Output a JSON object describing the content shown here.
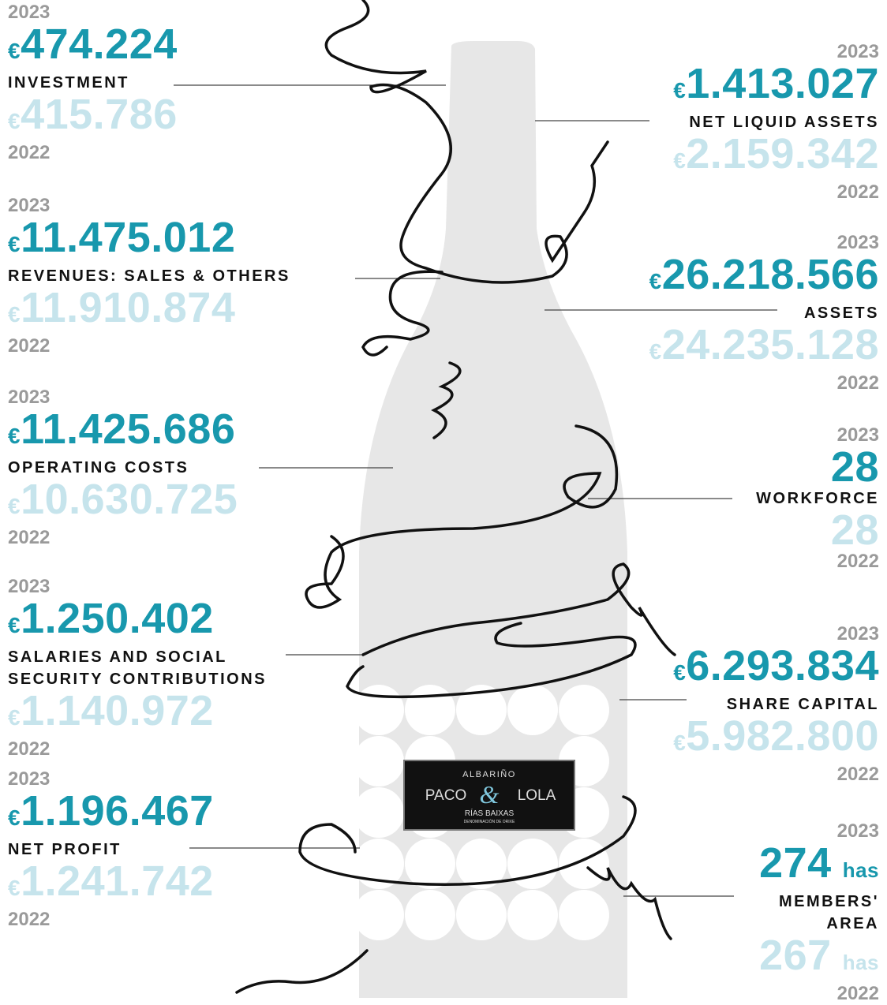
{
  "left": [
    {
      "year_current": "2023",
      "currency": "€",
      "value_current": "474.224",
      "label_lines": [
        "INVESTMENT"
      ],
      "value_prev": "415.786",
      "year_prev": "2022"
    },
    {
      "year_current": "2023",
      "currency": "€",
      "value_current": "11.475.012",
      "label_lines": [
        "REVENUES: SALES & OTHERS"
      ],
      "value_prev": "11.910.874",
      "year_prev": "2022"
    },
    {
      "year_current": "2023",
      "currency": "€",
      "value_current": "11.425.686",
      "label_lines": [
        "OPERATING COSTS"
      ],
      "value_prev": "10.630.725",
      "year_prev": "2022"
    },
    {
      "year_current": "2023",
      "currency": "€",
      "value_current": "1.250.402",
      "label_lines": [
        "SALARIES AND SOCIAL",
        "SECURITY CONTRIBUTIONS"
      ],
      "value_prev": "1.140.972",
      "year_prev": "2022"
    },
    {
      "year_current": "2023",
      "currency": "€",
      "value_current": "1.196.467",
      "label_lines": [
        "NET PROFIT"
      ],
      "value_prev": "1.241.742",
      "year_prev": "2022"
    }
  ],
  "right": [
    {
      "year_current": "2023",
      "currency": "€",
      "value_current": "1.413.027",
      "label_lines": [
        "NET LIQUID ASSETS"
      ],
      "value_prev": "2.159.342",
      "year_prev": "2022"
    },
    {
      "year_current": "2023",
      "currency": "€",
      "value_current": "26.218.566",
      "label_lines": [
        "ASSETS"
      ],
      "value_prev": "24.235.128",
      "year_prev": "2022"
    },
    {
      "year_current": "2023",
      "value_current": "28",
      "label_lines": [
        "WORKFORCE"
      ],
      "value_prev": "28",
      "year_prev": "2022"
    },
    {
      "year_current": "2023",
      "currency": "€",
      "value_current": "6.293.834",
      "label_lines": [
        "SHARE CAPITAL"
      ],
      "value_prev": "5.982.800",
      "year_prev": "2022"
    },
    {
      "year_current": "2023",
      "value_current": "274",
      "unit": "has",
      "label_lines": [
        "MEMBERS'",
        "AREA"
      ],
      "value_prev": "267",
      "year_prev": "2022"
    }
  ],
  "bottle_label": {
    "top": "ALBARIÑO",
    "brand_left": "PACO",
    "ampersand": "&",
    "brand_right": "LOLA",
    "region": "RÍAS BAIXAS",
    "denomination": "DENOMINACIÓN DE ORIXE"
  }
}
